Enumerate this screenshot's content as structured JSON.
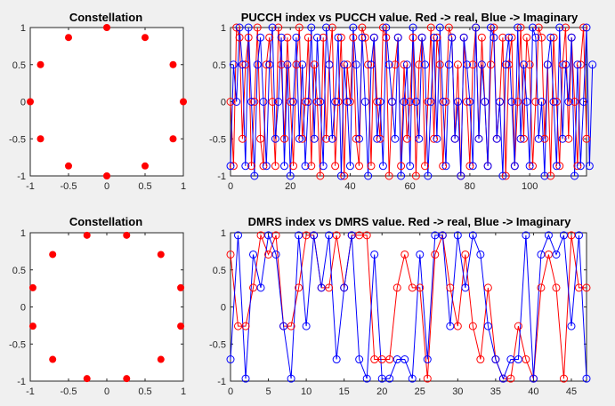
{
  "chart_data": [
    {
      "type": "scatter",
      "title": "Constellation",
      "xlim": [
        -1,
        1
      ],
      "ylim": [
        -1,
        1
      ],
      "xticks": [
        "-1",
        "-0.5",
        "0",
        "0.5",
        "1"
      ],
      "yticks": [
        "1",
        "0.5",
        "0",
        "-0.5",
        "-1"
      ],
      "marker_color": "#ff0000",
      "points": [
        [
          1,
          0
        ],
        [
          0.866,
          0.5
        ],
        [
          0.5,
          0.866
        ],
        [
          0,
          1
        ],
        [
          -0.5,
          0.866
        ],
        [
          -0.866,
          0.5
        ],
        [
          -1,
          0
        ],
        [
          -0.866,
          -0.5
        ],
        [
          -0.5,
          -0.866
        ],
        [
          0,
          -1
        ],
        [
          0.5,
          -0.866
        ],
        [
          0.866,
          -0.5
        ]
      ]
    },
    {
      "type": "line",
      "title": "PUCCH index vs PUCCH value. Red -> real, Blue -> Imaginary",
      "xlim": [
        0,
        119
      ],
      "ylim": [
        -1,
        1
      ],
      "xticks": [
        "0",
        "20",
        "40",
        "60",
        "80",
        "100"
      ],
      "yticks": [
        "1",
        "0.5",
        "0",
        "-0.5",
        "-1"
      ],
      "series": [
        {
          "color": "#ff0000",
          "values": [
            0,
            -0.866,
            1,
            0.866,
            -0.5,
            0.5,
            0.866,
            -0.866,
            0,
            1,
            -0.5,
            -0.866,
            0.5,
            0.866,
            0,
            -0.866,
            1,
            0.5,
            -0.5,
            0.866,
            0,
            -0.866,
            0.5,
            1,
            -0.5,
            0,
            0.866,
            -0.866,
            0.5,
            0,
            -1,
            0.866,
            -0.5,
            0.5,
            1,
            -0.866,
            0,
            0.866,
            -1,
            0.5,
            0,
            0.866,
            -0.5,
            -0.866,
            1,
            0.866,
            0.5,
            -0.866,
            0.866,
            0,
            -0.5,
            1,
            0.866,
            -1,
            0,
            0.5,
            0.866,
            -0.866,
            0.5,
            -0.5,
            0,
            0.866,
            -1,
            0.5,
            0.866,
            -0.866,
            0,
            1,
            -0.5,
            0.866,
            0.5,
            -0.866,
            0,
            1,
            0.866,
            -0.5,
            0.5,
            -1,
            0.866,
            0,
            -0.866,
            0.5,
            1,
            -0.5,
            0.866,
            0,
            -0.866,
            0.5,
            1,
            -0.5,
            0,
            0.866,
            -1,
            0.5,
            0.866,
            -0.866,
            0,
            1,
            -0.5,
            0.866,
            0.5,
            -0.866,
            0,
            1,
            0.866,
            -0.5,
            0.5,
            -1,
            0.866,
            0,
            -0.866,
            0.5,
            1,
            -0.5,
            0.866,
            0,
            -0.866,
            0.5,
            1,
            -0.5
          ]
        },
        {
          "color": "#0000ff",
          "values": [
            -0.866,
            0.5,
            0,
            1,
            0.5,
            -0.866,
            1,
            0,
            -1,
            0.5,
            0.866,
            0,
            -0.866,
            0.5,
            1,
            -0.5,
            0,
            0.866,
            -0.866,
            0.5,
            -1,
            0,
            0.866,
            -0.5,
            0.5,
            -0.866,
            0,
            1,
            -0.5,
            0.866,
            0,
            -0.866,
            1,
            0.5,
            -0.5,
            0,
            0.866,
            -1,
            0.5,
            0,
            -0.866,
            1,
            0.5,
            -0.5,
            0.866,
            0,
            -1,
            0.5,
            0.866,
            -0.5,
            0,
            -0.866,
            1,
            0.5,
            0,
            -0.5,
            0.866,
            -1,
            0,
            0.5,
            -0.866,
            1,
            0,
            -0.5,
            0.866,
            0.5,
            -1,
            0,
            0.866,
            -0.5,
            1,
            0,
            -0.866,
            0.5,
            0.866,
            -0.5,
            0,
            -1,
            0.866,
            0.5,
            0,
            -0.866,
            1,
            -0.5,
            0.5,
            0,
            -0.866,
            1,
            0.866,
            -0.5,
            0,
            -1,
            0.5,
            0.866,
            0,
            -0.866,
            1,
            -0.5,
            0.5,
            0,
            -0.866,
            1,
            0.866,
            -0.5,
            0,
            -1,
            0.5,
            0.866,
            0,
            -0.866,
            1,
            -0.5,
            0.5,
            0,
            0.866,
            -1,
            0.5,
            -0.866,
            0,
            1,
            -0.866,
            0.5
          ]
        }
      ]
    },
    {
      "type": "scatter",
      "title": "Constellation",
      "xlim": [
        -1,
        1
      ],
      "ylim": [
        -1,
        1
      ],
      "xticks": [
        "-1",
        "-0.5",
        "0",
        "0.5",
        "1"
      ],
      "yticks": [
        "1",
        "0.5",
        "0",
        "-0.5",
        "-1"
      ],
      "marker_color": "#ff0000",
      "points": [
        [
          0.966,
          0.259
        ],
        [
          0.707,
          0.707
        ],
        [
          0.259,
          0.966
        ],
        [
          -0.259,
          0.966
        ],
        [
          -0.707,
          0.707
        ],
        [
          -0.966,
          0.259
        ],
        [
          -0.966,
          -0.259
        ],
        [
          -0.707,
          -0.707
        ],
        [
          -0.259,
          -0.966
        ],
        [
          0.259,
          -0.966
        ],
        [
          0.707,
          -0.707
        ],
        [
          0.966,
          -0.259
        ]
      ]
    },
    {
      "type": "line",
      "title": "DMRS index vs DMRS value. Red -> real, Blue -> Imaginary",
      "xlim": [
        0,
        47
      ],
      "ylim": [
        -1,
        1
      ],
      "xticks": [
        "0",
        "5",
        "10",
        "15",
        "20",
        "25",
        "30",
        "35",
        "40",
        "45"
      ],
      "yticks": [
        "1",
        "0.5",
        "0",
        "-0.5",
        "-1"
      ],
      "series": [
        {
          "color": "#ff0000",
          "values": [
            0.707,
            -0.259,
            -0.259,
            0.259,
            0.966,
            0.707,
            0.966,
            -0.259,
            -0.259,
            0.259,
            0.966,
            0.966,
            0.259,
            0.259,
            0.966,
            0.259,
            0.966,
            0.966,
            0.966,
            -0.707,
            -0.707,
            -0.707,
            0.259,
            0.707,
            0.259,
            0.259,
            -0.966,
            0.707,
            0.966,
            0.259,
            -0.259,
            0.707,
            -0.259,
            -0.707,
            0.259,
            -0.707,
            -0.966,
            -0.966,
            -0.259,
            -0.707,
            -0.966,
            0.259,
            0.707,
            0.259,
            -0.966,
            0.966,
            0.259,
            0.259
          ]
        },
        {
          "color": "#0000ff",
          "values": [
            -0.707,
            0.966,
            -0.966,
            0.707,
            0.259,
            0.966,
            0.707,
            -0.259,
            -0.966,
            0.966,
            -0.259,
            0.966,
            0.259,
            0.966,
            -0.707,
            0.259,
            0.966,
            -0.707,
            -0.966,
            0.707,
            -0.966,
            -0.966,
            -0.707,
            -0.707,
            -0.966,
            0.707,
            -0.707,
            0.966,
            0.966,
            -0.259,
            0.966,
            0.259,
            0.966,
            0.707,
            -0.259,
            -0.707,
            -0.966,
            -0.707,
            -0.707,
            0.966,
            -0.966,
            0.707,
            0.966,
            0.707,
            0.966,
            -0.259,
            0.966,
            -0.966
          ]
        }
      ]
    }
  ]
}
